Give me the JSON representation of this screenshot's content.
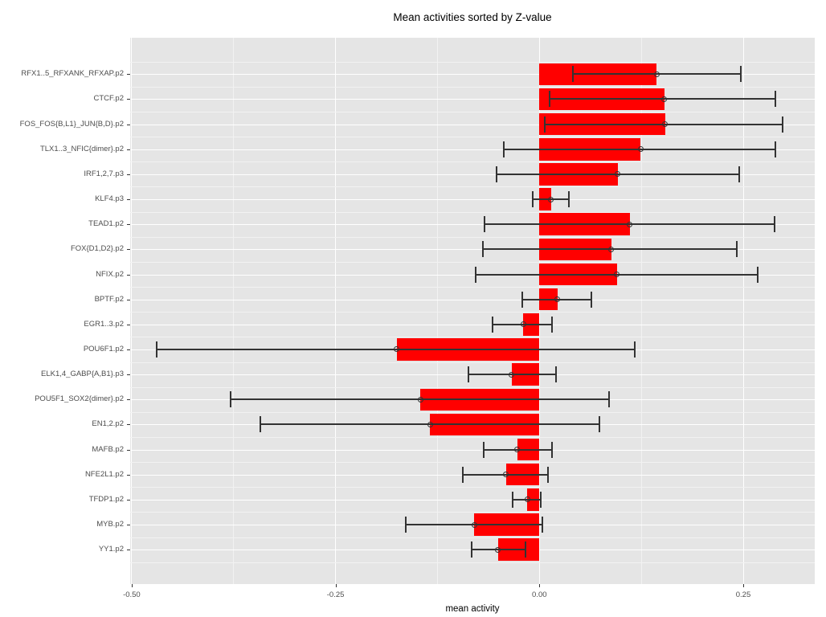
{
  "chart_data": {
    "type": "bar",
    "orientation": "horizontal",
    "title": "Mean activities sorted by Z-value",
    "xlabel": "mean activity",
    "ylabel": "",
    "grid": "on",
    "legend": "none",
    "xlim": [
      -0.502,
      0.338
    ],
    "x_major_ticks": {
      "labels": [
        "-0.50",
        "-0.25",
        "0.00",
        "0.25"
      ],
      "values": [
        -0.5,
        -0.25,
        0.0,
        0.25
      ]
    },
    "x_minor_ticks": [
      -0.375,
      -0.125,
      0.125
    ],
    "categories": [
      "RFX1..5_RFXANK_RFXAP.p2",
      "CTCF.p2",
      "FOS_FOS{B,L1}_JUN{B,D}.p2",
      "TLX1..3_NFIC{dimer}.p2",
      "IRF1,2,7.p3",
      "KLF4.p3",
      "TEAD1.p2",
      "FOX{D1,D2}.p2",
      "NFIX.p2",
      "BPTF.p2",
      "EGR1..3.p2",
      "POU6F1.p2",
      "ELK1,4_GABP{A,B1}.p3",
      "POU5F1_SOX2{dimer}.p2",
      "EN1,2.p2",
      "MAFB.p2",
      "NFE2L1.p2",
      "TFDP1.p2",
      "MYB.p2",
      "YY1.p2"
    ],
    "series": [
      {
        "name": "mean activity",
        "values": [
          0.144,
          0.153,
          0.154,
          0.124,
          0.096,
          0.014,
          0.111,
          0.088,
          0.095,
          0.022,
          -0.02,
          -0.175,
          -0.034,
          -0.146,
          -0.134,
          -0.027,
          -0.041,
          -0.015,
          -0.08,
          -0.051
        ]
      }
    ],
    "error_low": [
      0.041,
      0.013,
      0.007,
      -0.044,
      -0.053,
      -0.008,
      -0.067,
      -0.069,
      -0.078,
      -0.021,
      -0.057,
      -0.469,
      -0.087,
      -0.379,
      -0.342,
      -0.068,
      -0.094,
      -0.033,
      -0.164,
      -0.083
    ],
    "error_high": [
      0.247,
      0.289,
      0.298,
      0.289,
      0.245,
      0.036,
      0.288,
      0.242,
      0.268,
      0.064,
      0.015,
      0.117,
      0.02,
      0.085,
      0.074,
      0.015,
      0.011,
      0.002,
      0.004,
      -0.017
    ],
    "colors": {
      "bar": "#FF0000",
      "panel_bg": "#E5E5E5",
      "grid_major": "#FFFFFF",
      "grid_minor": "#F2F2F2",
      "error_bar": "#333333",
      "tick_text": "#4D4D4D",
      "title_text": "#000000"
    }
  }
}
